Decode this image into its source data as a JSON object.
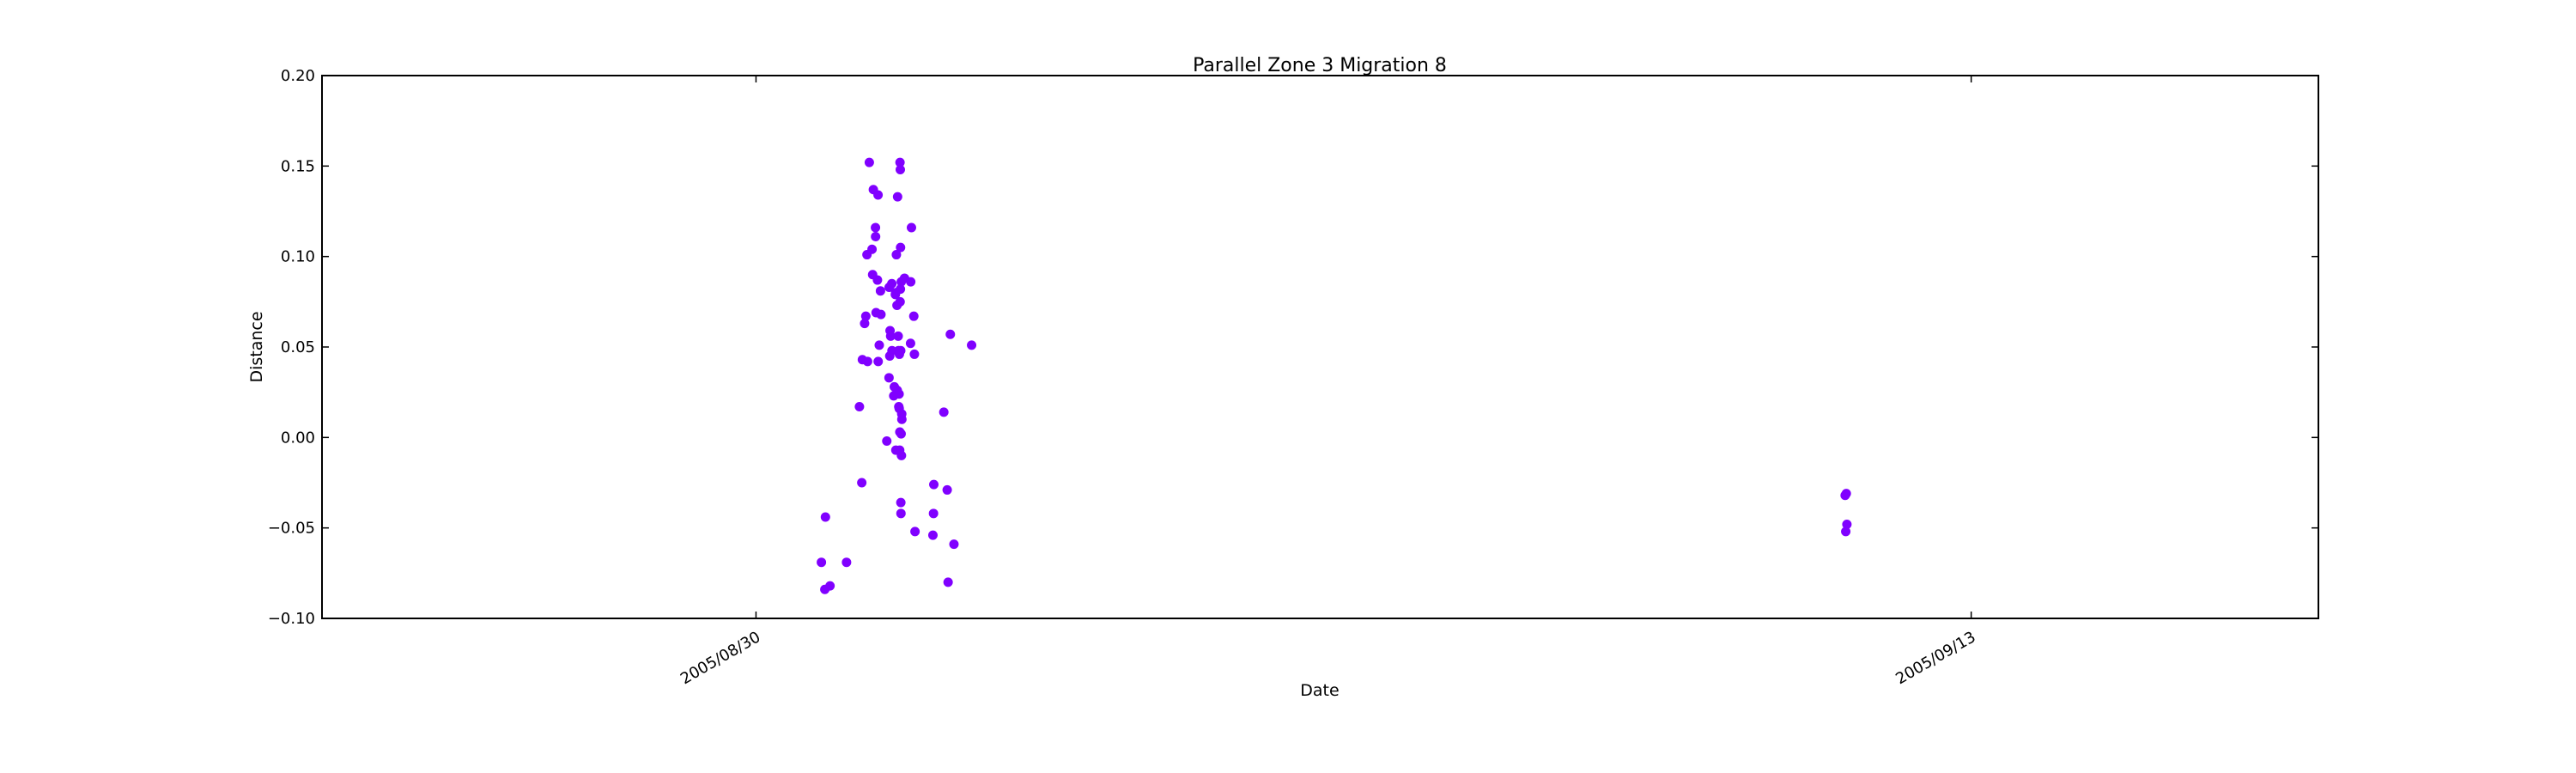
{
  "chart_data": {
    "type": "scatter",
    "title": "Parallel Zone 3 Migration 8",
    "xlabel": "Date",
    "ylabel": "Distance",
    "x_axis": {
      "kind": "date",
      "range": [
        "2005-08-25",
        "2005-09-17"
      ],
      "ticks": [
        {
          "value": "2005-08-30",
          "label": "2005/08/30"
        },
        {
          "value": "2005-09-13",
          "label": "2005/09/13"
        }
      ]
    },
    "y_axis": {
      "range": [
        -0.1,
        0.2
      ],
      "ticks": [
        {
          "value": -0.1,
          "label": "−0.10"
        },
        {
          "value": -0.05,
          "label": "−0.05"
        },
        {
          "value": 0.0,
          "label": "0.00"
        },
        {
          "value": 0.05,
          "label": "0.05"
        },
        {
          "value": 0.1,
          "label": "0.10"
        },
        {
          "value": 0.15,
          "label": "0.15"
        },
        {
          "value": 0.2,
          "label": "0.20"
        }
      ]
    },
    "grid": false,
    "legend": "none",
    "marker_color": "#8000ff",
    "points": [
      {
        "x": "2005-08-30 18:05",
        "y": -0.069
      },
      {
        "x": "2005-08-30 19:02",
        "y": -0.084
      },
      {
        "x": "2005-08-30 19:12",
        "y": -0.044
      },
      {
        "x": "2005-08-30 20:28",
        "y": -0.082
      },
      {
        "x": "2005-08-31 01:02",
        "y": -0.069
      },
      {
        "x": "2005-08-31 04:36",
        "y": 0.017
      },
      {
        "x": "2005-08-31 05:15",
        "y": -0.025
      },
      {
        "x": "2005-08-31 05:25",
        "y": 0.043
      },
      {
        "x": "2005-08-31 06:02",
        "y": 0.063
      },
      {
        "x": "2005-08-31 06:22",
        "y": 0.067
      },
      {
        "x": "2005-08-31 06:41",
        "y": 0.101
      },
      {
        "x": "2005-08-31 06:51",
        "y": 0.042
      },
      {
        "x": "2005-08-31 07:20",
        "y": 0.152
      },
      {
        "x": "2005-08-31 08:05",
        "y": 0.104
      },
      {
        "x": "2005-08-31 08:15",
        "y": 0.09
      },
      {
        "x": "2005-08-31 08:27",
        "y": 0.137
      },
      {
        "x": "2005-08-31 09:02",
        "y": 0.116
      },
      {
        "x": "2005-08-31 09:04",
        "y": 0.111
      },
      {
        "x": "2005-08-31 09:12",
        "y": 0.069
      },
      {
        "x": "2005-08-31 09:35",
        "y": 0.087
      },
      {
        "x": "2005-08-31 09:45",
        "y": 0.134
      },
      {
        "x": "2005-08-31 09:47",
        "y": 0.042
      },
      {
        "x": "2005-08-31 10:05",
        "y": 0.051
      },
      {
        "x": "2005-08-31 10:25",
        "y": 0.081
      },
      {
        "x": "2005-08-31 10:33",
        "y": 0.068
      },
      {
        "x": "2005-08-31 12:10",
        "y": -0.002
      },
      {
        "x": "2005-08-31 12:47",
        "y": 0.033
      },
      {
        "x": "2005-08-31 12:49",
        "y": 0.083
      },
      {
        "x": "2005-08-31 12:59",
        "y": 0.045
      },
      {
        "x": "2005-08-31 13:04",
        "y": 0.059
      },
      {
        "x": "2005-08-31 13:14",
        "y": 0.056
      },
      {
        "x": "2005-08-31 13:33",
        "y": 0.085
      },
      {
        "x": "2005-08-31 13:36",
        "y": 0.048
      },
      {
        "x": "2005-08-31 14:05",
        "y": 0.023
      },
      {
        "x": "2005-08-31 14:15",
        "y": 0.028
      },
      {
        "x": "2005-08-31 14:32",
        "y": 0.079
      },
      {
        "x": "2005-08-31 14:37",
        "y": 0.08
      },
      {
        "x": "2005-08-31 14:40",
        "y": -0.007
      },
      {
        "x": "2005-08-31 14:49",
        "y": 0.101
      },
      {
        "x": "2005-08-31 14:59",
        "y": 0.073
      },
      {
        "x": "2005-08-31 15:04",
        "y": 0.026
      },
      {
        "x": "2005-08-31 15:09",
        "y": 0.133
      },
      {
        "x": "2005-08-31 15:19",
        "y": 0.056
      },
      {
        "x": "2005-08-31 15:24",
        "y": 0.048
      },
      {
        "x": "2005-08-31 15:29",
        "y": 0.017
      },
      {
        "x": "2005-08-31 15:34",
        "y": 0.024
      },
      {
        "x": "2005-08-31 15:36",
        "y": 0.016
      },
      {
        "x": "2005-08-31 15:39",
        "y": 0.046
      },
      {
        "x": "2005-08-31 15:44",
        "y": -0.007
      },
      {
        "x": "2005-08-31 15:46",
        "y": 0.003
      },
      {
        "x": "2005-08-31 15:49",
        "y": 0.152
      },
      {
        "x": "2005-08-31 15:51",
        "y": 0.075
      },
      {
        "x": "2005-08-31 15:54",
        "y": 0.148
      },
      {
        "x": "2005-08-31 15:56",
        "y": 0.082
      },
      {
        "x": "2005-08-31 15:58",
        "y": 0.105
      },
      {
        "x": "2005-08-31 16:01",
        "y": 0.048
      },
      {
        "x": "2005-08-31 16:03",
        "y": -0.036
      },
      {
        "x": "2005-08-31 16:05",
        "y": -0.042
      },
      {
        "x": "2005-08-31 16:08",
        "y": 0.002
      },
      {
        "x": "2005-08-31 16:10",
        "y": 0.086
      },
      {
        "x": "2005-08-31 16:13",
        "y": -0.01
      },
      {
        "x": "2005-08-31 16:18",
        "y": 0.013
      },
      {
        "x": "2005-08-31 16:20",
        "y": 0.01
      },
      {
        "x": "2005-08-31 17:04",
        "y": 0.088
      },
      {
        "x": "2005-08-31 18:44",
        "y": 0.052
      },
      {
        "x": "2005-08-31 18:47",
        "y": 0.086
      },
      {
        "x": "2005-08-31 18:59",
        "y": 0.116
      },
      {
        "x": "2005-08-31 19:38",
        "y": 0.067
      },
      {
        "x": "2005-08-31 19:48",
        "y": 0.046
      },
      {
        "x": "2005-08-31 19:58",
        "y": -0.052
      },
      {
        "x": "2005-09-01 00:55",
        "y": -0.054
      },
      {
        "x": "2005-09-01 01:05",
        "y": -0.042
      },
      {
        "x": "2005-09-01 01:10",
        "y": -0.026
      },
      {
        "x": "2005-09-01 03:56",
        "y": 0.014
      },
      {
        "x": "2005-09-01 04:52",
        "y": -0.029
      },
      {
        "x": "2005-09-01 05:07",
        "y": -0.08
      },
      {
        "x": "2005-09-01 05:44",
        "y": 0.057
      },
      {
        "x": "2005-09-01 06:44",
        "y": -0.059
      },
      {
        "x": "2005-09-01 11:37",
        "y": 0.051
      },
      {
        "x": "2005-09-11 13:09",
        "y": -0.032
      },
      {
        "x": "2005-09-11 13:19",
        "y": -0.052
      },
      {
        "x": "2005-09-11 13:28",
        "y": -0.031
      },
      {
        "x": "2005-09-11 13:38",
        "y": -0.048
      }
    ]
  }
}
